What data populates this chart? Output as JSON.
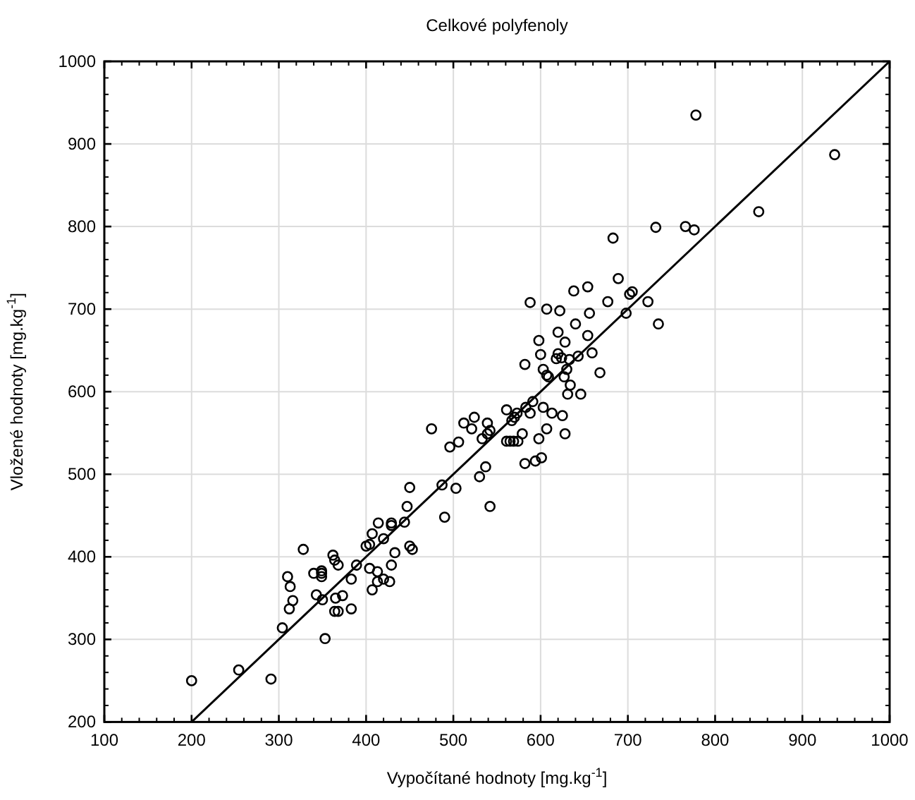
{
  "chart_data": {
    "type": "scatter",
    "title": "Celkové polyfenoly",
    "xlabel": "Vypočítané hodnoty [mg.kg$^{-1}$]",
    "ylabel": "Vložené hodnoty [mg.kg$^{-1}$]",
    "xlim": [
      100,
      1000
    ],
    "ylim": [
      200,
      1000
    ],
    "xticks": [
      100,
      200,
      300,
      400,
      500,
      600,
      700,
      800,
      900,
      1000
    ],
    "yticks": [
      200,
      300,
      400,
      500,
      600,
      700,
      800,
      900,
      1000
    ],
    "grid": true,
    "marker": "circle",
    "series": [
      {
        "color": "#000000",
        "x": [
          200,
          254,
          291,
          304,
          353,
          310,
          313,
          316,
          312,
          328,
          340,
          349,
          349,
          349,
          343,
          350,
          362,
          364,
          368,
          365,
          373,
          364,
          368,
          383,
          383,
          389,
          404,
          407,
          413,
          413,
          420,
          427,
          400,
          404,
          407,
          414,
          420,
          429,
          429,
          433,
          429,
          444,
          447,
          450,
          450,
          453,
          475,
          487,
          490,
          503,
          542,
          530,
          537,
          496,
          506,
          512,
          521,
          524,
          539,
          542,
          533,
          539,
          561,
          565,
          569,
          574,
          579,
          582,
          594,
          601,
          598,
          607,
          628,
          561,
          567,
          570,
          573,
          583,
          588,
          591,
          603,
          613,
          625,
          582,
          600,
          603,
          607,
          609,
          618,
          627,
          630,
          634,
          631,
          646,
          668,
          620,
          624,
          633,
          643,
          659,
          588,
          598,
          607,
          620,
          622,
          638,
          640,
          628,
          732,
          766,
          776,
          683,
          689,
          654,
          677,
          702,
          705,
          723,
          656,
          698,
          735,
          654,
          778,
          937,
          850
        ],
        "values": [
          250,
          263,
          252,
          314,
          301,
          376,
          364,
          347,
          337,
          409,
          380,
          383,
          380,
          376,
          354,
          348,
          402,
          396,
          390,
          350,
          353,
          334,
          334,
          337,
          373,
          390,
          386,
          360,
          382,
          370,
          373,
          370,
          413,
          415,
          428,
          441,
          422,
          441,
          438,
          405,
          390,
          442,
          461,
          484,
          413,
          409,
          555,
          487,
          448,
          483,
          461,
          497,
          509,
          533,
          539,
          562,
          555,
          569,
          562,
          553,
          543,
          549,
          540,
          540,
          540,
          540,
          549,
          513,
          516,
          520,
          543,
          555,
          549,
          578,
          565,
          569,
          574,
          581,
          574,
          588,
          581,
          574,
          571,
          633,
          645,
          627,
          620,
          618,
          640,
          618,
          627,
          608,
          597,
          597,
          623,
          646,
          641,
          639,
          643,
          647,
          708,
          662,
          700,
          672,
          698,
          722,
          682,
          660,
          799,
          800,
          796,
          786,
          737,
          727,
          709,
          718,
          721,
          709,
          695,
          695,
          682,
          668,
          935,
          887,
          818
        ]
      },
      {
        "type": "line",
        "color": "#000000",
        "x": [
          200,
          1000
        ],
        "values": [
          200,
          1000
        ],
        "marker": "none"
      }
    ]
  }
}
